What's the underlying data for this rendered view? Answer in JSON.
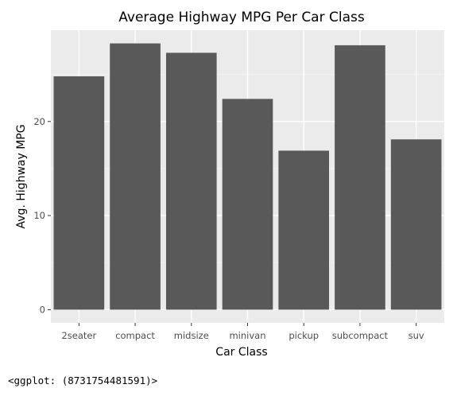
{
  "chart_data": {
    "type": "bar",
    "title": "Average Highway MPG Per Car Class",
    "xlabel": "Car Class",
    "ylabel": "Avg. Highway MPG",
    "categories": [
      "2seater",
      "compact",
      "midsize",
      "minivan",
      "pickup",
      "subcompact",
      "suv"
    ],
    "values": [
      24.8,
      28.3,
      27.3,
      22.4,
      16.9,
      28.1,
      18.1
    ],
    "ylim": [
      -1.4,
      29.7
    ],
    "yticks": [
      0,
      10,
      20
    ],
    "ytick_labels": [
      "0",
      "10",
      "20"
    ],
    "grid": true,
    "legend": "none",
    "colors": {
      "bar": "#595959",
      "panel": "#ebebeb",
      "grid_major": "#ffffff",
      "grid_minor": "#f4f4f4"
    }
  },
  "console_output": "<ggplot: (8731754481591)>"
}
